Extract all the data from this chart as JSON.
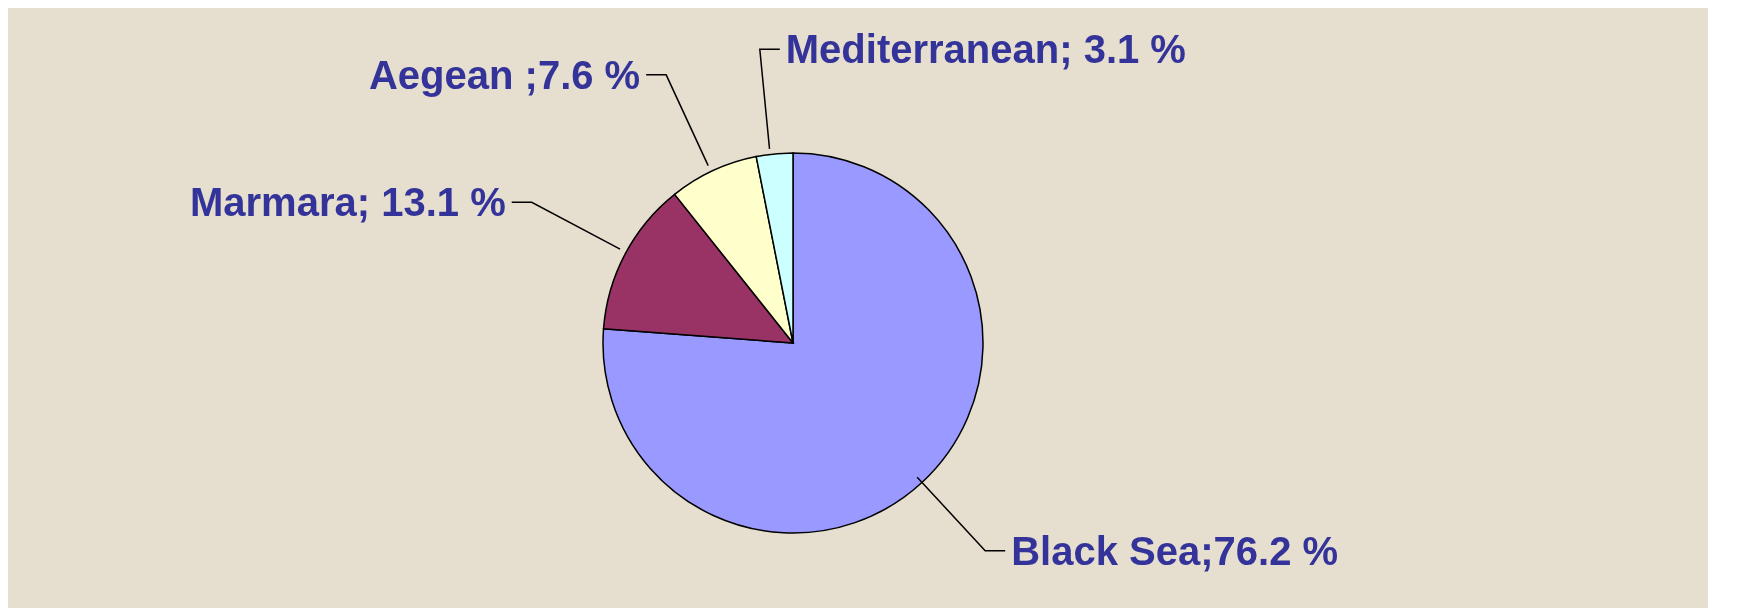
{
  "chart_data": {
    "type": "pie",
    "categories": [
      "Black Sea",
      "Marmara",
      "Aegean",
      "Mediterranean"
    ],
    "values": [
      76.2,
      13.1,
      7.6,
      3.1
    ],
    "colors": [
      "#9999ff",
      "#993366",
      "#ffffcc",
      "#ccffff"
    ],
    "value_labels": [
      ";76.2 %",
      "; 13.1 %",
      " ;7.6 %",
      "; 3.1 %"
    ],
    "legend": false
  }
}
